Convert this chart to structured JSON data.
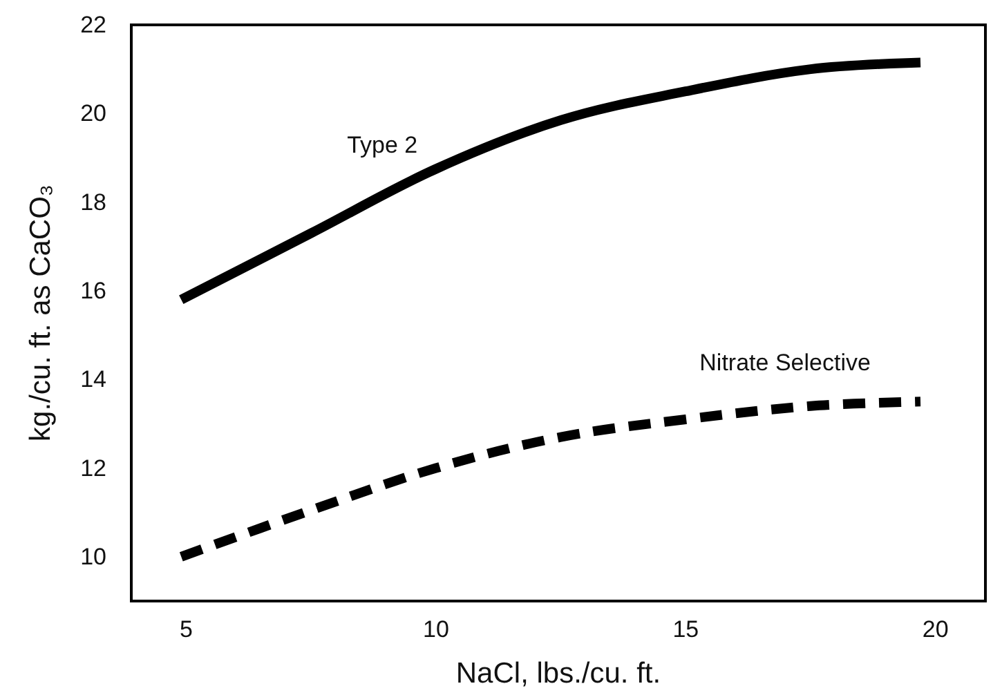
{
  "chart_data": {
    "type": "line",
    "xlabel": "NaCl, lbs./cu. ft.",
    "ylabel": "kg./cu. ft. as CaCO₃",
    "xlim": [
      3.9,
      21
    ],
    "xticks": [
      5,
      10,
      15,
      20
    ],
    "ylim": [
      9,
      22
    ],
    "yticks": [
      10,
      12,
      14,
      16,
      18,
      20,
      22
    ],
    "grid": false,
    "legend": false,
    "marker": "none",
    "series": [
      {
        "name": "Type 2",
        "color": "#000000",
        "line_style": "solid",
        "x": [
          4.9,
          7.5,
          10,
          12.5,
          15,
          17.5,
          19.7
        ],
        "values": [
          15.8,
          17.3,
          18.75,
          19.85,
          20.5,
          21.0,
          21.15
        ]
      },
      {
        "name": "Nitrate Selective",
        "color": "#000000",
        "line_style": "dashed",
        "x": [
          4.9,
          7.5,
          10,
          12.5,
          15,
          17.5,
          19.7
        ],
        "values": [
          10.0,
          11.05,
          12.0,
          12.7,
          13.1,
          13.4,
          13.5
        ]
      }
    ]
  }
}
